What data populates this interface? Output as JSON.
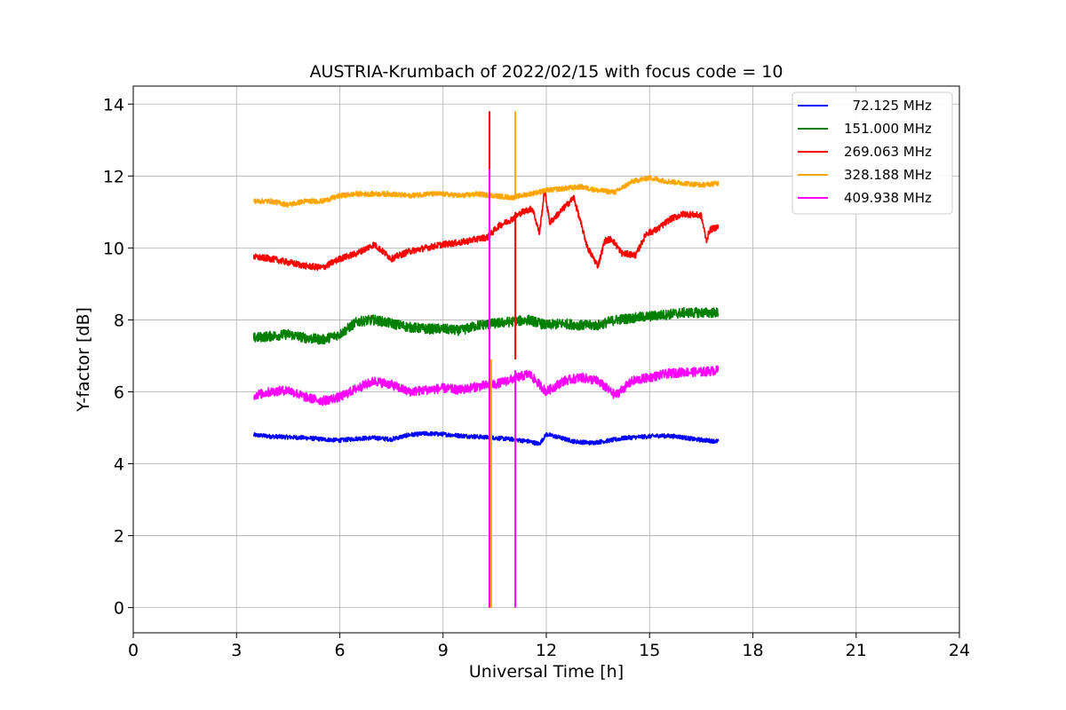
{
  "chart_data": {
    "type": "line",
    "title": "AUSTRIA-Krumbach of 2022/02/15 with focus code = 10",
    "xlabel": "Universal Time [h]",
    "ylabel": "Y-factor [dB]",
    "xlim": [
      0,
      24
    ],
    "ylim": [
      -0.7,
      14.5
    ],
    "xticks": [
      0,
      3,
      6,
      9,
      12,
      15,
      18,
      21,
      24
    ],
    "yticks": [
      0,
      2,
      4,
      6,
      8,
      10,
      12,
      14
    ],
    "xtick_labels": [
      "0",
      "3",
      "6",
      "9",
      "12",
      "15",
      "18",
      "21",
      "24"
    ],
    "ytick_labels": [
      "0",
      "2",
      "4",
      "6",
      "8",
      "10",
      "12",
      "14"
    ],
    "grid": true,
    "legend_position": "top-right",
    "series": [
      {
        "name": "72.125 MHz",
        "legend_label": "  72.125 MHz",
        "color": "#0000ff",
        "noise": 0.06,
        "x": [
          3.5,
          4,
          4.5,
          5,
          5.5,
          6,
          6.5,
          7,
          7.5,
          8,
          8.5,
          9,
          9.5,
          10,
          10.5,
          11,
          11.5,
          11.8,
          12,
          12.3,
          12.8,
          13.3,
          13.8,
          14.3,
          14.8,
          15.3,
          15.8,
          16.3,
          17
        ],
        "y": [
          4.8,
          4.76,
          4.74,
          4.72,
          4.68,
          4.65,
          4.7,
          4.72,
          4.68,
          4.8,
          4.84,
          4.82,
          4.78,
          4.75,
          4.72,
          4.68,
          4.62,
          4.55,
          4.82,
          4.75,
          4.62,
          4.58,
          4.64,
          4.72,
          4.75,
          4.78,
          4.76,
          4.68,
          4.62
        ]
      },
      {
        "name": "151.000 MHz",
        "legend_label": "151.000 MHz",
        "color": "#008000",
        "noise": 0.14,
        "x": [
          3.5,
          4,
          4.5,
          5,
          5.5,
          6,
          6.5,
          7,
          7.5,
          8,
          8.5,
          9,
          9.5,
          10,
          10.5,
          11,
          11.5,
          12,
          12.5,
          13,
          13.5,
          14,
          14.5,
          15,
          15.5,
          16,
          16.5,
          17
        ],
        "y": [
          7.5,
          7.55,
          7.6,
          7.5,
          7.45,
          7.6,
          7.95,
          8.0,
          7.9,
          7.8,
          7.75,
          7.75,
          7.7,
          7.85,
          7.9,
          7.95,
          8.0,
          7.85,
          7.9,
          7.85,
          7.85,
          8.0,
          8.05,
          8.1,
          8.15,
          8.2,
          8.2,
          8.2
        ]
      },
      {
        "name": "269.063 MHz",
        "legend_label": "269.063 MHz",
        "color": "#ff0000",
        "noise": 0.09,
        "x": [
          3.5,
          4,
          4.5,
          5,
          5.5,
          6,
          6.5,
          7,
          7.5,
          8,
          8.5,
          9,
          9.5,
          10,
          10.3,
          10.6,
          11,
          11.3,
          11.6,
          11.8,
          11.95,
          12.1,
          12.4,
          12.8,
          13.0,
          13.2,
          13.5,
          13.7,
          13.9,
          14.2,
          14.6,
          14.9,
          15.2,
          15.6,
          16.0,
          16.5,
          16.65,
          16.75,
          17
        ],
        "y": [
          9.75,
          9.7,
          9.6,
          9.5,
          9.45,
          9.7,
          9.85,
          10.1,
          9.7,
          9.9,
          10.0,
          10.1,
          10.15,
          10.25,
          10.3,
          10.6,
          10.8,
          11.0,
          11.1,
          10.4,
          11.6,
          10.7,
          11.0,
          11.4,
          10.7,
          10.0,
          9.5,
          10.2,
          10.25,
          9.85,
          9.8,
          10.4,
          10.5,
          10.8,
          10.95,
          10.9,
          10.2,
          10.5,
          10.6
        ]
      },
      {
        "name": "328.188 MHz",
        "legend_label": "328.188 MHz",
        "color": "#ffa500",
        "noise": 0.07,
        "x": [
          3.5,
          4,
          4.5,
          5,
          5.5,
          6,
          6.5,
          7,
          7.5,
          8,
          8.5,
          9,
          9.5,
          10,
          10.5,
          11,
          11.5,
          12,
          12.5,
          13,
          13.5,
          14,
          14.5,
          15,
          15.5,
          16,
          16.5,
          17
        ],
        "y": [
          11.3,
          11.3,
          11.2,
          11.3,
          11.3,
          11.45,
          11.5,
          11.5,
          11.5,
          11.45,
          11.5,
          11.5,
          11.45,
          11.5,
          11.45,
          11.4,
          11.5,
          11.6,
          11.65,
          11.7,
          11.6,
          11.55,
          11.85,
          11.95,
          11.85,
          11.8,
          11.75,
          11.8
        ]
      },
      {
        "name": "409.938 MHz",
        "legend_label": "409.938 MHz",
        "color": "#ff00ff",
        "noise": 0.13,
        "x": [
          3.5,
          4,
          4.5,
          5,
          5.5,
          6,
          6.5,
          7,
          7.5,
          8,
          8.5,
          9,
          9.5,
          10,
          10.5,
          11,
          11.5,
          12,
          12.5,
          13,
          13.5,
          14,
          14.5,
          15,
          15.5,
          16,
          16.5,
          17
        ],
        "y": [
          5.9,
          6.0,
          6.05,
          5.85,
          5.75,
          5.85,
          6.1,
          6.3,
          6.2,
          6.0,
          6.05,
          6.1,
          6.05,
          6.15,
          6.2,
          6.35,
          6.5,
          6.0,
          6.3,
          6.4,
          6.3,
          5.9,
          6.3,
          6.4,
          6.5,
          6.55,
          6.55,
          6.6
        ]
      }
    ],
    "spikes": [
      {
        "series": "269.063 MHz",
        "x": 10.35,
        "top": 13.8,
        "bottom": 0.0
      },
      {
        "series": "409.938 MHz",
        "x": 10.35,
        "top": 12.2,
        "bottom": 0.0
      },
      {
        "series": "328.188 MHz",
        "x": 10.4,
        "top": 6.9,
        "bottom": 0.0
      },
      {
        "series": "328.188 MHz",
        "x": 11.1,
        "top": 13.8,
        "bottom": 11.4
      },
      {
        "series": "269.063 MHz",
        "x": 11.1,
        "top": 11.0,
        "bottom": 6.9
      },
      {
        "series": "409.938 MHz",
        "x": 11.1,
        "top": 6.6,
        "bottom": 0.0
      }
    ]
  }
}
